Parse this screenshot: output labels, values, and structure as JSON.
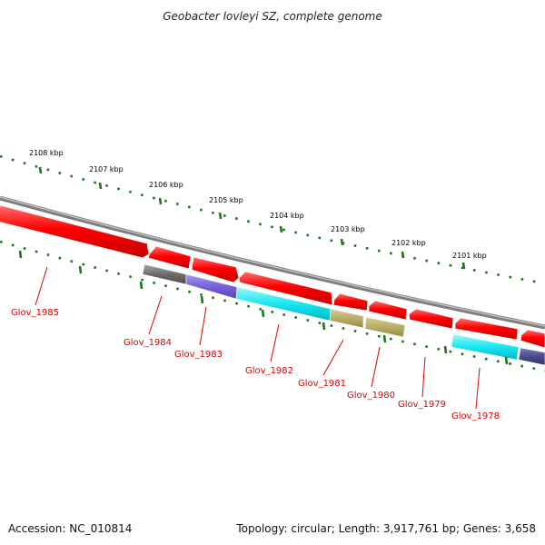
{
  "title": "Geobacter lovleyi SZ, complete genome",
  "footer": {
    "accession": "Accession: NC_010814",
    "summary": "Topology: circular; Length: 3,917,761 bp; Genes: 3,658"
  },
  "kbp_labels": [
    "2108 kbp",
    "2107 kbp",
    "2106 kbp",
    "2105 kbp",
    "2104 kbp",
    "2103 kbp",
    "2102 kbp",
    "2101 kbp"
  ],
  "gene_labels": [
    "Glov_1985",
    "Glov_1984",
    "Glov_1983",
    "Glov_1982",
    "Glov_1981",
    "Glov_1980",
    "Glov_1979",
    "Glov_1978"
  ],
  "colors": {
    "backbone": "#808080",
    "cds": "#ee0000",
    "tick": "#1a7a1a",
    "label": "#dd0000",
    "feature_dark_gray": "#6a6a6a",
    "feature_purple": "#7a68d6",
    "feature_cyan": "#18e6f0",
    "feature_khaki": "#b8ac68",
    "feature_dark_purple": "#4a4a8c"
  }
}
